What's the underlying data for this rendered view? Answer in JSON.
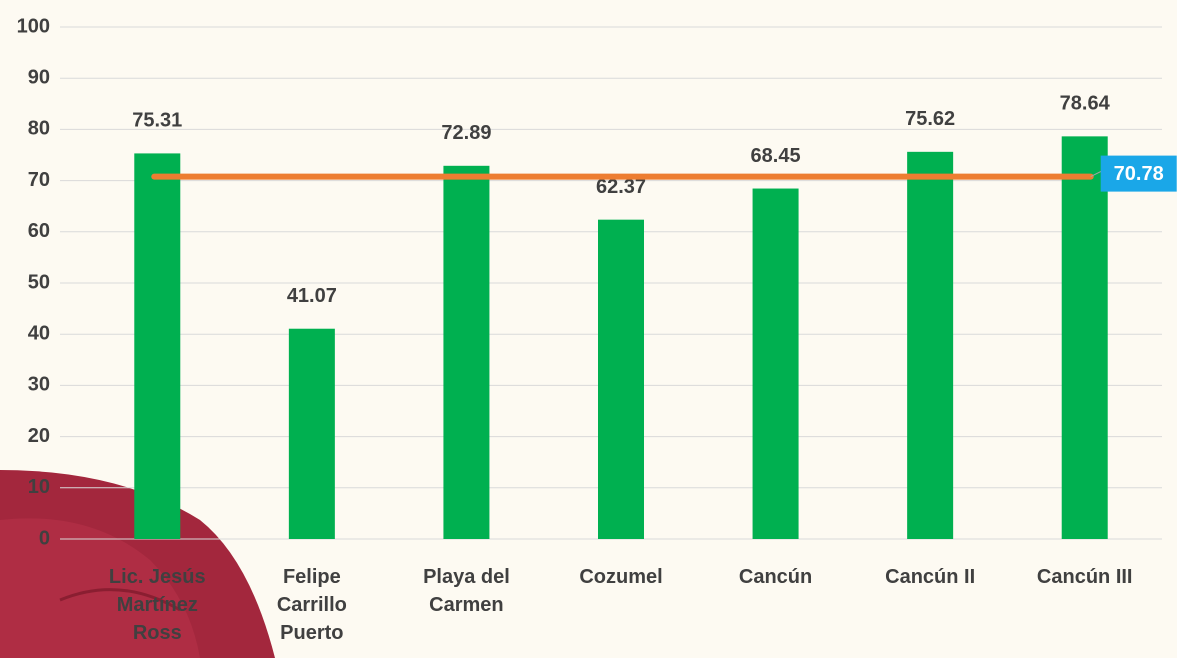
{
  "chart_data": {
    "type": "bar",
    "categories": [
      "Lic. Jesús Martínez Ross",
      "Felipe Carrillo Puerto",
      "Playa del Carmen",
      "Cozumel",
      "Cancún",
      "Cancún II",
      "Cancún III"
    ],
    "values": [
      75.31,
      41.07,
      72.89,
      62.37,
      68.45,
      75.62,
      78.64
    ],
    "color": "#00b050",
    "ylim": [
      0,
      100
    ],
    "yticks": [
      0,
      10,
      20,
      30,
      40,
      50,
      60,
      70,
      80,
      90,
      100
    ],
    "grid": true,
    "reference_line": {
      "value": 70.78,
      "color": "#ed7d31",
      "label_color": "#1aa7e8"
    }
  }
}
